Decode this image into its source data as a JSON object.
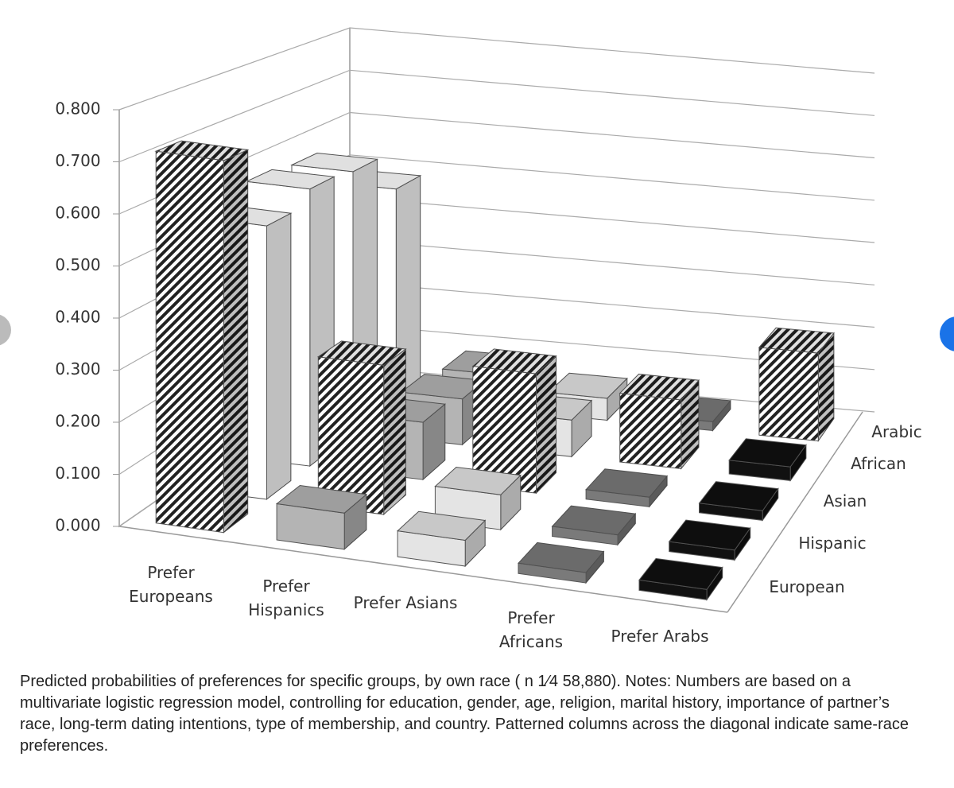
{
  "chart_data": {
    "type": "bar3d",
    "categories": [
      "Prefer Europeans",
      "Prefer Hispanics",
      "Prefer Asians",
      "Prefer Africans",
      "Prefer Arabs"
    ],
    "category_colors": [
      "#ffffff",
      "#b4b4b4",
      "#e4e4e4",
      "#7a7a7a",
      "#111111"
    ],
    "series": [
      {
        "name": "European",
        "values": [
          0.72,
          0.07,
          0.05,
          0.02,
          0.02
        ]
      },
      {
        "name": "Hispanic",
        "values": [
          0.55,
          0.3,
          0.07,
          0.02,
          0.02
        ]
      },
      {
        "name": "Asian",
        "values": [
          0.58,
          0.12,
          0.25,
          0.02,
          0.02
        ]
      },
      {
        "name": "African",
        "values": [
          0.57,
          0.1,
          0.08,
          0.15,
          0.03
        ]
      },
      {
        "name": "Arabic",
        "values": [
          0.48,
          0.08,
          0.05,
          0.02,
          0.2
        ]
      }
    ],
    "ylim": [
      0,
      0.8
    ],
    "yticks": [
      {
        "value": 0,
        "label": "0.000"
      },
      {
        "value": 0.1,
        "label": "0.100"
      },
      {
        "value": 0.2,
        "label": "0.200"
      },
      {
        "value": 0.3,
        "label": "0.300"
      },
      {
        "value": 0.4,
        "label": "0.400"
      },
      {
        "value": 0.5,
        "label": "0.500"
      },
      {
        "value": 0.6,
        "label": "0.600"
      },
      {
        "value": 0.7,
        "label": "0.700"
      },
      {
        "value": 0.8,
        "label": "0.800"
      }
    ],
    "grid": true,
    "caption": "Predicted probabilities of preferences for specific groups, by own race ( n 1⁄4 58,880). Notes: Numbers are based on a multivariate logistic regression model, controlling for education, gender, age, religion, marital history, importance of partner’s race, long-term dating intentions, type of membership, and country. Patterned columns across the diagonal indicate same-race preferences."
  }
}
